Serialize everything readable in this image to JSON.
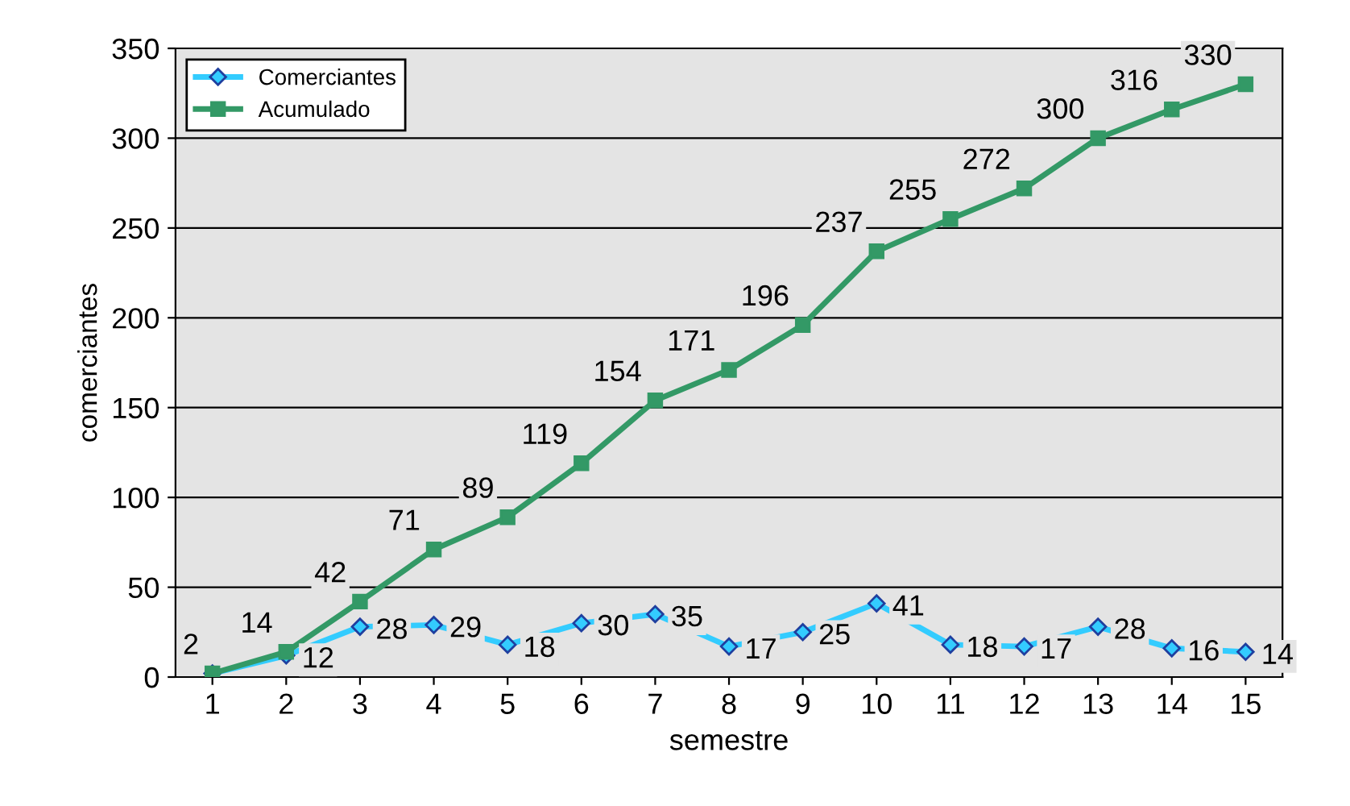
{
  "chart_data": {
    "type": "line",
    "xlabel": "semestre",
    "ylabel": "comerciantes",
    "categories": [
      "1",
      "2",
      "3",
      "4",
      "5",
      "6",
      "7",
      "8",
      "9",
      "10",
      "11",
      "12",
      "13",
      "14",
      "15"
    ],
    "series": [
      {
        "name": "Comerciantes",
        "color": "#33ccff",
        "marker": "diamond",
        "values": [
          2,
          12,
          28,
          29,
          18,
          30,
          35,
          17,
          25,
          41,
          18,
          17,
          28,
          16,
          14
        ],
        "value_labels": [
          null,
          "12",
          "28",
          "29",
          "18",
          "30",
          "35",
          "17",
          "25",
          "41",
          "18",
          "17",
          "28",
          "16",
          "14"
        ]
      },
      {
        "name": "Acumulado",
        "color": "#339966",
        "marker": "square",
        "values": [
          2,
          14,
          42,
          71,
          89,
          119,
          154,
          171,
          196,
          237,
          255,
          272,
          300,
          316,
          330
        ],
        "value_labels": [
          "2",
          "14",
          "42",
          "71",
          "89",
          "119",
          "154",
          "171",
          "196",
          "237",
          "255",
          "272",
          "300",
          "316",
          "330"
        ]
      }
    ],
    "ylim": [
      0,
      350
    ],
    "yticks": [
      0,
      50,
      100,
      150,
      200,
      250,
      300,
      350
    ],
    "grid": "y",
    "legend": "top left"
  }
}
